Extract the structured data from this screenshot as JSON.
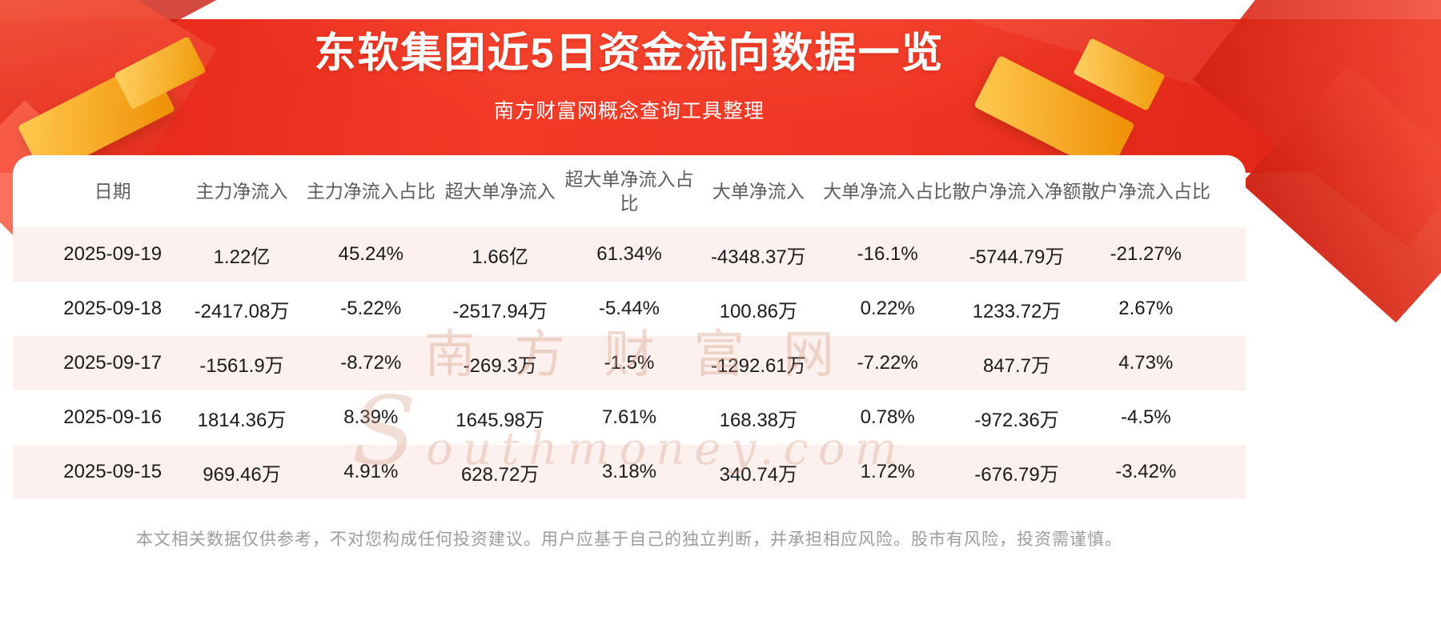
{
  "page": {
    "title": "东软集团近5日资金流向数据一览",
    "subtitle": "南方财富网概念查询工具整理",
    "disclaimer": "本文相关数据仅供参考，不对您构成任何投资建议。用户应基于自己的独立判断，并承担相应风险。股市有风险，投资需谨慎。",
    "watermark_cn": "南方财富网",
    "watermark_en": "Southmoney.com"
  },
  "colors": {
    "banner_red": "#ee3322",
    "banner_red_dark": "#dc2012",
    "decor_gold": "#ef8f04",
    "row_stripe_pink": "#fdf1f0",
    "header_text": "#5d5d5d",
    "body_text": "#1a1a1a",
    "disclaimer_text": "#9c9c9c",
    "title_text": "#ffffff"
  },
  "chart_data": {
    "type": "table",
    "title": "东软集团近5日资金流向数据一览",
    "columns": [
      "日期",
      "主力净流入",
      "主力净流入占比",
      "超大单净流入",
      "超大单净流入占比",
      "大单净流入",
      "大单净流入占比",
      "散户净流入净额",
      "散户净流入占比"
    ],
    "rows": [
      [
        "2025-09-19",
        "1.22亿",
        "45.24%",
        "1.66亿",
        "61.34%",
        "-4348.37万",
        "-16.1%",
        "-5744.79万",
        "-21.27%"
      ],
      [
        "2025-09-18",
        "-2417.08万",
        "-5.22%",
        "-2517.94万",
        "-5.44%",
        "100.86万",
        "0.22%",
        "1233.72万",
        "2.67%"
      ],
      [
        "2025-09-17",
        "-1561.9万",
        "-8.72%",
        "-269.3万",
        "-1.5%",
        "-1292.61万",
        "-7.22%",
        "847.7万",
        "4.73%"
      ],
      [
        "2025-09-16",
        "1814.36万",
        "8.39%",
        "1645.98万",
        "7.61%",
        "168.38万",
        "0.78%",
        "-972.36万",
        "-4.5%"
      ],
      [
        "2025-09-15",
        "969.46万",
        "4.91%",
        "628.72万",
        "3.18%",
        "340.74万",
        "1.72%",
        "-676.79万",
        "-3.42%"
      ]
    ],
    "layout": {
      "striped_rows": "odd",
      "stripe_color": "#fdf1f0",
      "alignment": "center"
    }
  }
}
